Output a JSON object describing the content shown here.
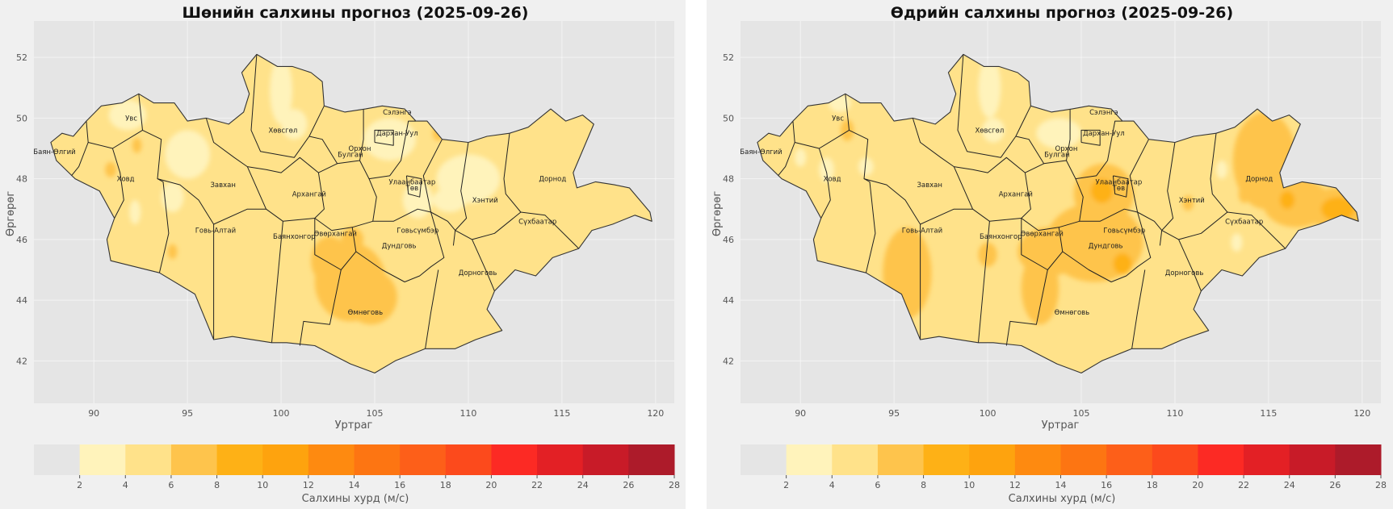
{
  "chart_data": [
    {
      "type": "heatmap",
      "title": "Шөнийн салхины прогноз (2025-09-26)",
      "xlabel": "Уртраг",
      "ylabel": "Өргөрөг",
      "xlim": [
        86.8,
        121
      ],
      "ylim": [
        40.6,
        53.2
      ],
      "x_ticks": [
        90,
        95,
        100,
        105,
        110,
        115,
        120
      ],
      "y_ticks": [
        42,
        44,
        46,
        48,
        50,
        52
      ],
      "grid": true,
      "colorbar": {
        "label": "Салхины хурд (м/с)",
        "levels": [
          0,
          2,
          4,
          6,
          8,
          10,
          12,
          14,
          16,
          18,
          20,
          22,
          24,
          26,
          28
        ],
        "tick_labels": [
          "2",
          "4",
          "6",
          "8",
          "10",
          "12",
          "14",
          "16",
          "18",
          "20",
          "22",
          "24",
          "26",
          "28"
        ],
        "colors": [
          "#e5e5e5",
          "#fff3bb",
          "#ffe28a",
          "#fec44c",
          "#feb116",
          "#fea30e",
          "#fe8a10",
          "#fd7512",
          "#fd5f19",
          "#fc4a1c",
          "#fc2a24",
          "#e32025",
          "#c81b28",
          "#ad1b2a"
        ]
      },
      "province_labels": [
        "Увс",
        "Баян-Өлгий",
        "Ховд",
        "Завхан",
        "Говь-Алтай",
        "Хөвсгөл",
        "Орхон",
        "Булган",
        "Архангай",
        "Сэлэнгэ",
        "Дархан-Уул",
        "Улаанбаатар",
        "Төв",
        "Баянхонгор",
        "Өвөрхангай",
        "Дундговь",
        "Говьсүмбэр",
        "Хэнтий",
        "Дорнод",
        "Сүхбаатар",
        "Дорноговь",
        "Өмнөговь"
      ],
      "regional_speed_mps": {
        "Увс": "2–6",
        "Баян-Өлгий": "2–4",
        "Ховд": "2–6",
        "Завхан": "4–6",
        "Говь-Алтай": "2–6",
        "Хөвсгөл": "2–4",
        "Орхон": "4–6",
        "Булган": "4–6",
        "Архангай": "4–6",
        "Сэлэнгэ": "2–6",
        "Дархан-Уул": "2–4",
        "Улаанбаатар": "2–4",
        "Төв": "4–6",
        "Баянхонгор": "4–6",
        "Өвөрхангай": "4–8",
        "Дундговь": "4–6",
        "Говьсүмбэр": "2–4",
        "Хэнтий": "2–4",
        "Дорнод": "4–6",
        "Сүхбаатар": "4–6",
        "Дорноговь": "4–6",
        "Өмнөговь": "4–8"
      }
    },
    {
      "type": "heatmap",
      "title": "Өдрийн салхины прогноз (2025-09-26)",
      "xlabel": "Уртраг",
      "ylabel": "Өргөрөг",
      "xlim": [
        86.8,
        121
      ],
      "ylim": [
        40.6,
        53.2
      ],
      "x_ticks": [
        90,
        95,
        100,
        105,
        110,
        115,
        120
      ],
      "y_ticks": [
        42,
        44,
        46,
        48,
        50,
        52
      ],
      "grid": true,
      "colorbar": {
        "label": "Салхины хурд (м/с)",
        "levels": [
          0,
          2,
          4,
          6,
          8,
          10,
          12,
          14,
          16,
          18,
          20,
          22,
          24,
          26,
          28
        ],
        "tick_labels": [
          "2",
          "4",
          "6",
          "8",
          "10",
          "12",
          "14",
          "16",
          "18",
          "20",
          "22",
          "24",
          "26",
          "28"
        ],
        "colors": [
          "#e5e5e5",
          "#fff3bb",
          "#ffe28a",
          "#fec44c",
          "#feb116",
          "#fea30e",
          "#fe8a10",
          "#fd7512",
          "#fd5f19",
          "#fc4a1c",
          "#fc2a24",
          "#e32025",
          "#c81b28",
          "#ad1b2a"
        ]
      },
      "province_labels": [
        "Увс",
        "Баян-Өлгий",
        "Ховд",
        "Завхан",
        "Говь-Алтай",
        "Хөвсгөл",
        "Орхон",
        "Булган",
        "Архангай",
        "Сэлэнгэ",
        "Дархан-Уул",
        "Улаанбаатар",
        "Төв",
        "Баянхонгор",
        "Өвөрхангай",
        "Дундговь",
        "Говьсүмбэр",
        "Хэнтий",
        "Дорнод",
        "Сүхбаатар",
        "Дорноговь",
        "Өмнөговь"
      ],
      "regional_speed_mps": {
        "Увс": "2–6",
        "Баян-Өлгий": "2–4",
        "Ховд": "2–6",
        "Завхан": "4–6",
        "Говь-Алтай": "4–8",
        "Хөвсгөл": "2–4",
        "Орхон": "4–6",
        "Булган": "4–6",
        "Архангай": "4–6",
        "Сэлэнгэ": "2–6",
        "Дархан-Уул": "2–4",
        "Улаанбаатар": "6–8",
        "Төв": "6–8",
        "Баянхонгор": "4–8",
        "Өвөрхангай": "6–8",
        "Дундговь": "6–8",
        "Говьсүмбэр": "4–6",
        "Хэнтий": "4–6",
        "Дорнод": "6–8",
        "Сүхбаатар": "4–6",
        "Дорноговь": "4–6",
        "Өмнөговь": "4–6"
      }
    }
  ]
}
